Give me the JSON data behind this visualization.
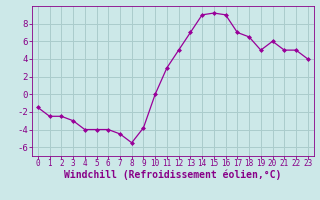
{
  "x": [
    0,
    1,
    2,
    3,
    4,
    5,
    6,
    7,
    8,
    9,
    10,
    11,
    12,
    13,
    14,
    15,
    16,
    17,
    18,
    19,
    20,
    21,
    22,
    23
  ],
  "y": [
    -1.5,
    -2.5,
    -2.5,
    -3.0,
    -4.0,
    -4.0,
    -4.0,
    -4.5,
    -5.5,
    -3.8,
    0.0,
    3.0,
    5.0,
    7.0,
    9.0,
    9.2,
    9.0,
    7.0,
    6.5,
    5.0,
    6.0,
    5.0,
    5.0,
    4.0
  ],
  "line_color": "#990099",
  "marker": "D",
  "marker_size": 2.0,
  "bg_color": "#cce8e8",
  "grid_color": "#aacccc",
  "xlabel": "Windchill (Refroidissement éolien,°C)",
  "xlabel_color": "#880088",
  "axis_color": "#880088",
  "tick_color": "#880088",
  "xlim": [
    -0.5,
    23.5
  ],
  "ylim": [
    -7,
    10
  ],
  "yticks": [
    -6,
    -4,
    -2,
    0,
    2,
    4,
    6,
    8
  ],
  "xticks": [
    0,
    1,
    2,
    3,
    4,
    5,
    6,
    7,
    8,
    9,
    10,
    11,
    12,
    13,
    14,
    15,
    16,
    17,
    18,
    19,
    20,
    21,
    22,
    23
  ],
  "tick_fontsize": 5.5,
  "xlabel_fontsize": 7.0,
  "ytick_fontsize": 6.5
}
